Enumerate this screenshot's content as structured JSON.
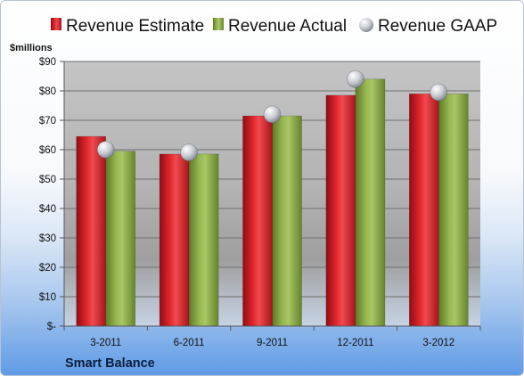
{
  "chart_data": {
    "type": "bar",
    "unit_label": "$millions",
    "company": "Smart Balance",
    "categories": [
      "3-2011",
      "6-2011",
      "9-2011",
      "12-2011",
      "3-2012"
    ],
    "series": [
      {
        "name": "Revenue Estimate",
        "kind": "bar",
        "color": "#d8202a",
        "values": [
          64.5,
          58.5,
          71.5,
          78.5,
          79
        ]
      },
      {
        "name": "Revenue Actual",
        "kind": "bar",
        "color": "#8fb04a",
        "values": [
          59.5,
          58.5,
          71.5,
          84,
          79
        ]
      },
      {
        "name": "Revenue GAAP",
        "kind": "marker",
        "color": "#b8bcc4",
        "values": [
          60,
          59,
          72,
          84,
          79.5
        ]
      }
    ],
    "ylim": [
      0,
      90
    ],
    "yticks": [
      "$-",
      "$10",
      "$20",
      "$30",
      "$40",
      "$50",
      "$60",
      "$70",
      "$80",
      "$90"
    ],
    "grid": true,
    "legend_position": "top"
  }
}
